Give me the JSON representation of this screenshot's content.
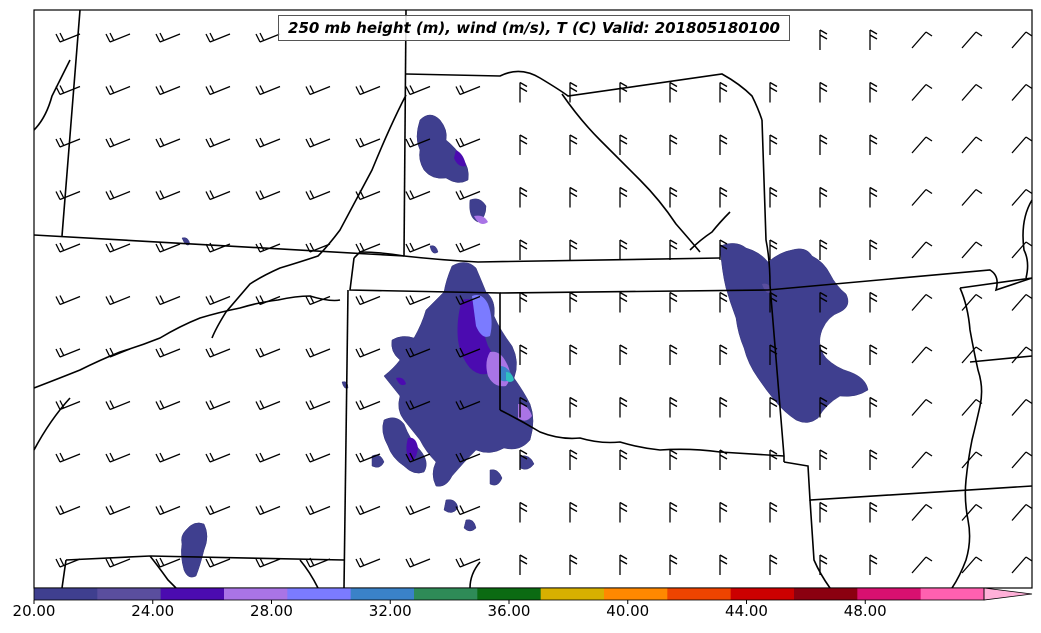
{
  "title": "250 mb height (m), wind (m/s), T (C) Valid: 201805180100",
  "colorbar": {
    "tick_labels": [
      "20.00",
      "24.00",
      "28.00",
      "32.00",
      "36.00",
      "40.00",
      "44.00",
      "48.00"
    ],
    "min": 20,
    "max": 52,
    "step": 2,
    "extend": "max",
    "colors": [
      "#3f3f8f",
      "#5a4e9e",
      "#4b0bb0",
      "#a974e6",
      "#7b7bff",
      "#3a82c8",
      "#2e8b57",
      "#0b6b12",
      "#d7b000",
      "#ff8800",
      "#ee4400",
      "#cc0000",
      "#8b0010",
      "#d81070",
      "#ff60b0",
      "#ffb0d8"
    ]
  }
}
